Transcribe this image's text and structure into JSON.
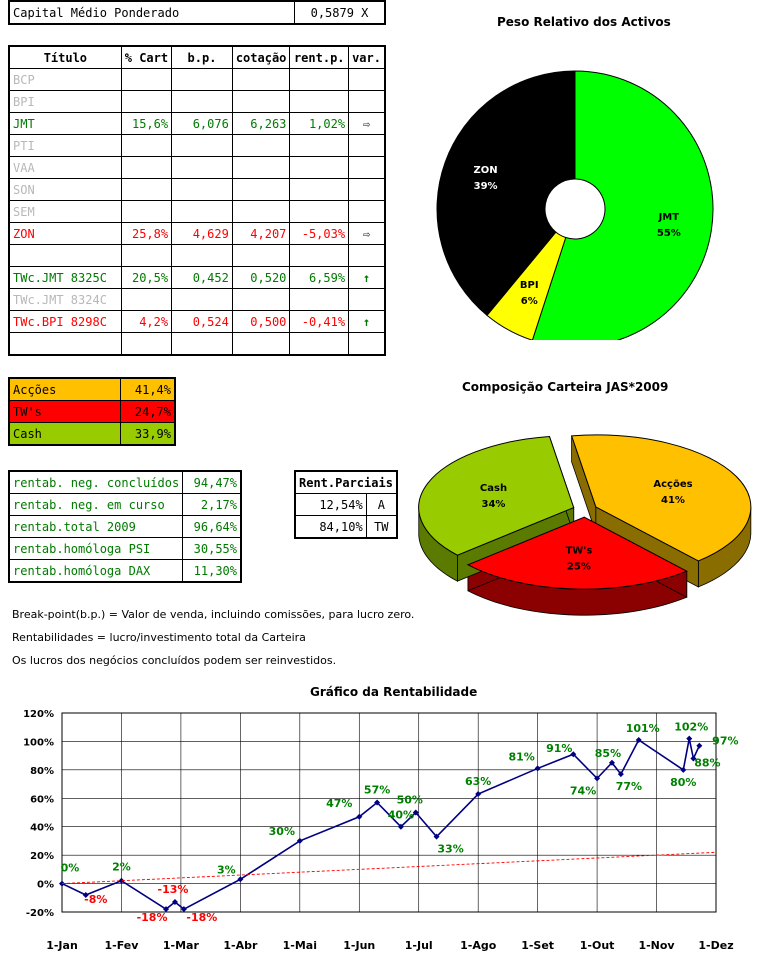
{
  "capital": {
    "label": "Capital Médio Ponderado",
    "value": "0,5879 X"
  },
  "holdings": {
    "headers": [
      "Título",
      "% Cart",
      "b.p.",
      "cotação",
      "rent.p.",
      "var."
    ],
    "rows": [
      {
        "t": "BCP",
        "cart": "",
        "bp": "",
        "cot": "",
        "rent": "",
        "var": "",
        "style": "grey"
      },
      {
        "t": "BPI",
        "cart": "",
        "bp": "",
        "cot": "",
        "rent": "",
        "var": "",
        "style": "grey"
      },
      {
        "t": "JMT",
        "cart": "15,6%",
        "bp": "6,076",
        "cot": "6,263",
        "rent": "1,02%",
        "var": "⇨",
        "style": "green"
      },
      {
        "t": "PTI",
        "cart": "",
        "bp": "",
        "cot": "",
        "rent": "",
        "var": "",
        "style": "grey"
      },
      {
        "t": "VAA",
        "cart": "",
        "bp": "",
        "cot": "",
        "rent": "",
        "var": "",
        "style": "grey"
      },
      {
        "t": "SON",
        "cart": "",
        "bp": "",
        "cot": "",
        "rent": "",
        "var": "",
        "style": "grey"
      },
      {
        "t": "SEM",
        "cart": "",
        "bp": "",
        "cot": "",
        "rent": "",
        "var": "",
        "style": "grey"
      },
      {
        "t": "ZON",
        "cart": "25,8%",
        "bp": "4,629",
        "cot": "4,207",
        "rent": "-5,03%",
        "var": "⇨",
        "style": "red"
      },
      {
        "t": "",
        "cart": "",
        "bp": "",
        "cot": "",
        "rent": "",
        "var": "",
        "style": "grey"
      },
      {
        "t": "TWc.JMT 8325C",
        "cart": "20,5%",
        "bp": "0,452",
        "cot": "0,520",
        "rent": "6,59%",
        "var": "↑",
        "style": "green"
      },
      {
        "t": "TWc.JMT 8324C",
        "cart": "",
        "bp": "",
        "cot": "",
        "rent": "",
        "var": "",
        "style": "grey"
      },
      {
        "t": "TWc.BPI 8298C",
        "cart": "4,2%",
        "bp": "0,524",
        "cot": "0,500",
        "rent": "-0,41%",
        "var": "↑",
        "style": "red"
      },
      {
        "t": "",
        "cart": "",
        "bp": "",
        "cot": "",
        "rent": "",
        "var": "",
        "style": "grey"
      }
    ]
  },
  "composition_table": [
    {
      "label": "Acções",
      "value": "41,4%",
      "bg": "#ffc000"
    },
    {
      "label": "TW's",
      "value": "24,7%",
      "bg": "#ff0000"
    },
    {
      "label": "Cash",
      "value": "33,9%",
      "bg": "#99cc00"
    }
  ],
  "returns": [
    {
      "label": "rentab. neg. concluídos",
      "value": "94,47%"
    },
    {
      "label": "rentab. neg. em curso",
      "value": "2,17%"
    },
    {
      "label": "rentab.total 2009",
      "value": "96,64%"
    },
    {
      "label": "rentab.homóloga PSI",
      "value": "30,55%"
    },
    {
      "label": "rentab.homóloga DAX",
      "value": "11,30%"
    }
  ],
  "partials": {
    "header": "Rent.Parciais",
    "rows": [
      {
        "value": "12,54%",
        "tag": "A"
      },
      {
        "value": "84,10%",
        "tag": "TW"
      }
    ]
  },
  "notes": [
    "Break-point(b.p.) = Valor de venda, incluindo comissões, para lucro zero.",
    "Rentabilidades = lucro/investimento total da Carteira",
    "Os lucros dos negócios concluídos podem ser reinvestidos."
  ],
  "chart_data": [
    {
      "type": "pie",
      "title": "Peso Relativo dos Activos",
      "donut": true,
      "slices": [
        {
          "label": "JMT",
          "pct": "55%",
          "value": 55,
          "color": "#00ff00"
        },
        {
          "label": "BPI",
          "pct": "6%",
          "value": 6,
          "color": "#ffff00"
        },
        {
          "label": "ZON",
          "pct": "39%",
          "value": 39,
          "color": "#000000"
        }
      ]
    },
    {
      "type": "pie",
      "title": "Composição Carteira JAS*2009",
      "style": "3d-exploded",
      "slices": [
        {
          "label": "Acções",
          "pct": "41%",
          "value": 41,
          "color": "#ffc000",
          "side": "#8a6d00"
        },
        {
          "label": "TW's",
          "pct": "25%",
          "value": 25,
          "color": "#ff0000",
          "side": "#8b0000"
        },
        {
          "label": "Cash",
          "pct": "34%",
          "value": 34,
          "color": "#99cc00",
          "side": "#5a7a00"
        }
      ]
    },
    {
      "type": "line",
      "title": "Gráfico da Rentabilidade",
      "ylim": [
        -20,
        120
      ],
      "yticks": [
        "120%",
        "100%",
        "80%",
        "60%",
        "40%",
        "20%",
        "0%",
        "-20%"
      ],
      "xlabels": [
        "1-Jan",
        "1-Fev",
        "1-Mar",
        "1-Abr",
        "1-Mai",
        "1-Jun",
        "1-Jul",
        "1-Ago",
        "1-Set",
        "1-Out",
        "1-Nov",
        "1-Dez"
      ],
      "grid": true,
      "series": [
        {
          "color": "#000080",
          "points": [
            {
              "x": 0,
              "y": 0,
              "label": "0%"
            },
            {
              "x": 0.4,
              "y": -8,
              "label": "-8%"
            },
            {
              "x": 1,
              "y": 2,
              "label": "2%"
            },
            {
              "x": 1.75,
              "y": -18,
              "label": "-18%"
            },
            {
              "x": 1.9,
              "y": -13,
              "label": "-13%"
            },
            {
              "x": 2.05,
              "y": -18,
              "label": "-18%"
            },
            {
              "x": 3,
              "y": 3,
              "label": "3%"
            },
            {
              "x": 4,
              "y": 30,
              "label": "30%"
            },
            {
              "x": 5,
              "y": 47,
              "label": "47%"
            },
            {
              "x": 5.3,
              "y": 57,
              "label": "57%"
            },
            {
              "x": 5.7,
              "y": 40,
              "label": "40%"
            },
            {
              "x": 5.95,
              "y": 50,
              "label": "50%"
            },
            {
              "x": 6.3,
              "y": 33,
              "label": "33%"
            },
            {
              "x": 7,
              "y": 63,
              "label": "63%"
            },
            {
              "x": 8,
              "y": 81,
              "label": "81%"
            },
            {
              "x": 8.6,
              "y": 91,
              "label": "91%"
            },
            {
              "x": 9,
              "y": 74,
              "label": "74%"
            },
            {
              "x": 9.25,
              "y": 85,
              "label": "85%"
            },
            {
              "x": 9.4,
              "y": 77,
              "label": "77%"
            },
            {
              "x": 9.7,
              "y": 101,
              "label": "101%"
            },
            {
              "x": 10.45,
              "y": 80,
              "label": "80%"
            },
            {
              "x": 10.55,
              "y": 102,
              "label": "102%"
            },
            {
              "x": 10.62,
              "y": 88,
              "label": "88%"
            },
            {
              "x": 10.72,
              "y": 97,
              "label": "97%"
            }
          ]
        },
        {
          "color": "#ff0000",
          "dashed": true,
          "points": [
            {
              "x": 0,
              "y": 0
            },
            {
              "x": 11,
              "y": 22
            }
          ]
        }
      ]
    }
  ]
}
